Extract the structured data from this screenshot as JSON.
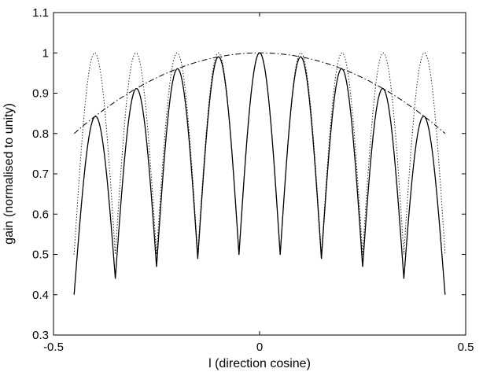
{
  "chart_data": {
    "type": "line",
    "xlabel": "l (direction cosine)",
    "ylabel": "gain (normalised to unity)",
    "xlim": [
      -0.5,
      0.5
    ],
    "ylim": [
      0.3,
      1.1
    ],
    "xticks": [
      -0.5,
      0,
      0.5
    ],
    "xtick_labels": [
      "-0.5",
      "0",
      "0.5"
    ],
    "yticks": [
      0.3,
      0.4,
      0.5,
      0.6,
      0.7,
      0.8,
      0.9,
      1.0,
      1.1
    ],
    "ytick_labels": [
      "0.3",
      "0.4",
      "0.5",
      "0.6",
      "0.7",
      "0.8",
      "0.9",
      "1",
      "1.1"
    ],
    "grid": false,
    "legend": "none",
    "series": [
      {
        "style": "dotted",
        "description": "periodic lobes peaking at 1",
        "lobe_peaks_x": [
          -0.4,
          -0.3,
          -0.2,
          -0.1,
          0.0,
          0.1,
          0.2,
          0.3,
          0.4
        ],
        "lobe_peak_values": [
          1.0,
          1.0,
          1.0,
          1.0,
          1.0,
          1.0,
          1.0,
          1.0,
          1.0
        ],
        "x_range": [
          -0.45,
          0.45
        ],
        "trough_value": 0.5
      },
      {
        "style": "solid",
        "description": "lobes modulated by envelope",
        "lobe_peaks_x": [
          -0.4,
          -0.3,
          -0.2,
          -0.1,
          0.0,
          0.1,
          0.2,
          0.3,
          0.4
        ],
        "lobe_peak_values": [
          0.84,
          0.91,
          0.96,
          0.99,
          1.0,
          0.99,
          0.96,
          0.91,
          0.84
        ],
        "trough_x": [
          -0.45,
          -0.35,
          -0.25,
          -0.15,
          -0.05,
          0.05,
          0.15,
          0.25,
          0.35,
          0.45
        ],
        "trough_values": [
          0.4,
          0.44,
          0.47,
          0.49,
          0.5,
          0.5,
          0.49,
          0.47,
          0.44,
          0.4
        ],
        "x_range": [
          -0.45,
          0.45
        ]
      },
      {
        "style": "dash-dot",
        "description": "envelope",
        "x": [
          -0.45,
          -0.4,
          -0.3,
          -0.2,
          -0.1,
          0.0,
          0.1,
          0.2,
          0.3,
          0.4,
          0.45
        ],
        "y": [
          0.8,
          0.84,
          0.91,
          0.96,
          0.99,
          1.0,
          0.99,
          0.96,
          0.91,
          0.84,
          0.8
        ]
      }
    ]
  }
}
